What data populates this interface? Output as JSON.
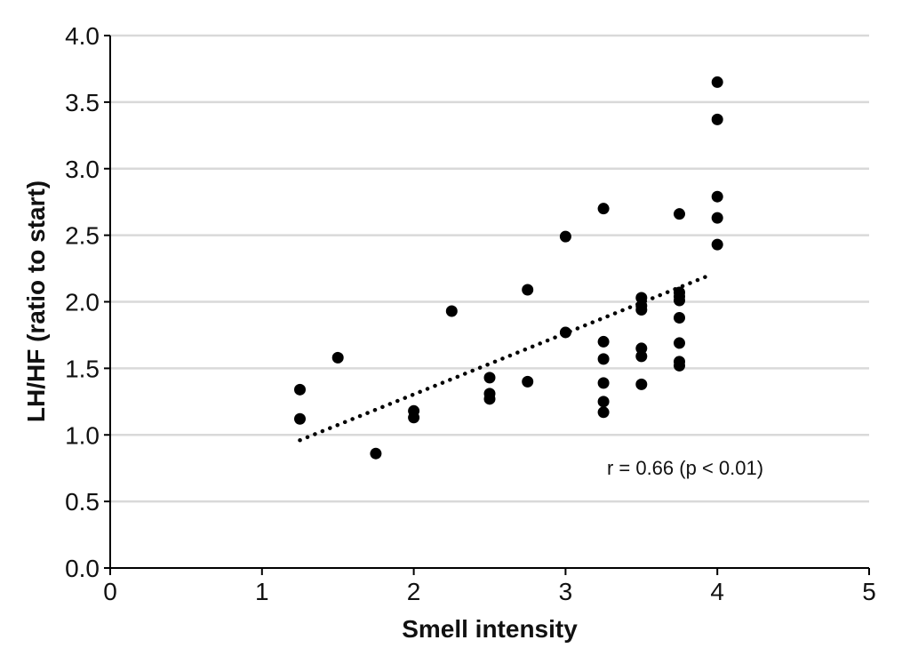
{
  "chart_data": {
    "type": "scatter",
    "title": "",
    "xlabel": "Smell intensity",
    "ylabel": "LH/HF (ratio to start)",
    "xlim": [
      0,
      5
    ],
    "ylim": [
      0,
      4
    ],
    "x_ticks": [
      "0",
      "1",
      "2",
      "3",
      "4",
      "5"
    ],
    "y_ticks": [
      "0.0",
      "0.5",
      "1.0",
      "1.5",
      "2.0",
      "2.5",
      "3.0",
      "3.5",
      "4.0"
    ],
    "grid": "horizontal",
    "legend": "none",
    "series": [
      {
        "points": [
          [
            1.25,
            1.34
          ],
          [
            1.25,
            1.12
          ],
          [
            1.5,
            1.58
          ],
          [
            1.75,
            0.86
          ],
          [
            2.0,
            1.18
          ],
          [
            2.0,
            1.13
          ],
          [
            2.25,
            1.93
          ],
          [
            2.5,
            1.43
          ],
          [
            2.5,
            1.31
          ],
          [
            2.5,
            1.27
          ],
          [
            2.75,
            2.09
          ],
          [
            2.75,
            1.4
          ],
          [
            3.0,
            2.49
          ],
          [
            3.0,
            1.77
          ],
          [
            3.25,
            2.7
          ],
          [
            3.25,
            1.7
          ],
          [
            3.25,
            1.57
          ],
          [
            3.25,
            1.39
          ],
          [
            3.25,
            1.25
          ],
          [
            3.25,
            1.17
          ],
          [
            3.5,
            2.03
          ],
          [
            3.5,
            1.97
          ],
          [
            3.5,
            1.94
          ],
          [
            3.5,
            1.65
          ],
          [
            3.5,
            1.59
          ],
          [
            3.5,
            1.38
          ],
          [
            3.75,
            2.66
          ],
          [
            3.75,
            2.07
          ],
          [
            3.75,
            2.04
          ],
          [
            3.75,
            2.01
          ],
          [
            3.75,
            1.88
          ],
          [
            3.75,
            1.69
          ],
          [
            3.75,
            1.55
          ],
          [
            3.75,
            1.52
          ],
          [
            4.0,
            3.65
          ],
          [
            4.0,
            3.37
          ],
          [
            4.0,
            2.79
          ],
          [
            4.0,
            2.63
          ],
          [
            4.0,
            2.43
          ]
        ]
      }
    ],
    "trendline": {
      "style": "dotted",
      "x": [
        1.25,
        3.95
      ],
      "y": [
        0.96,
        2.2
      ]
    },
    "annotation": "r = 0.66 (p < 0.01)",
    "colors": {
      "points": "#000000",
      "grid": "#d9d9d9",
      "axis": "#000000"
    }
  }
}
